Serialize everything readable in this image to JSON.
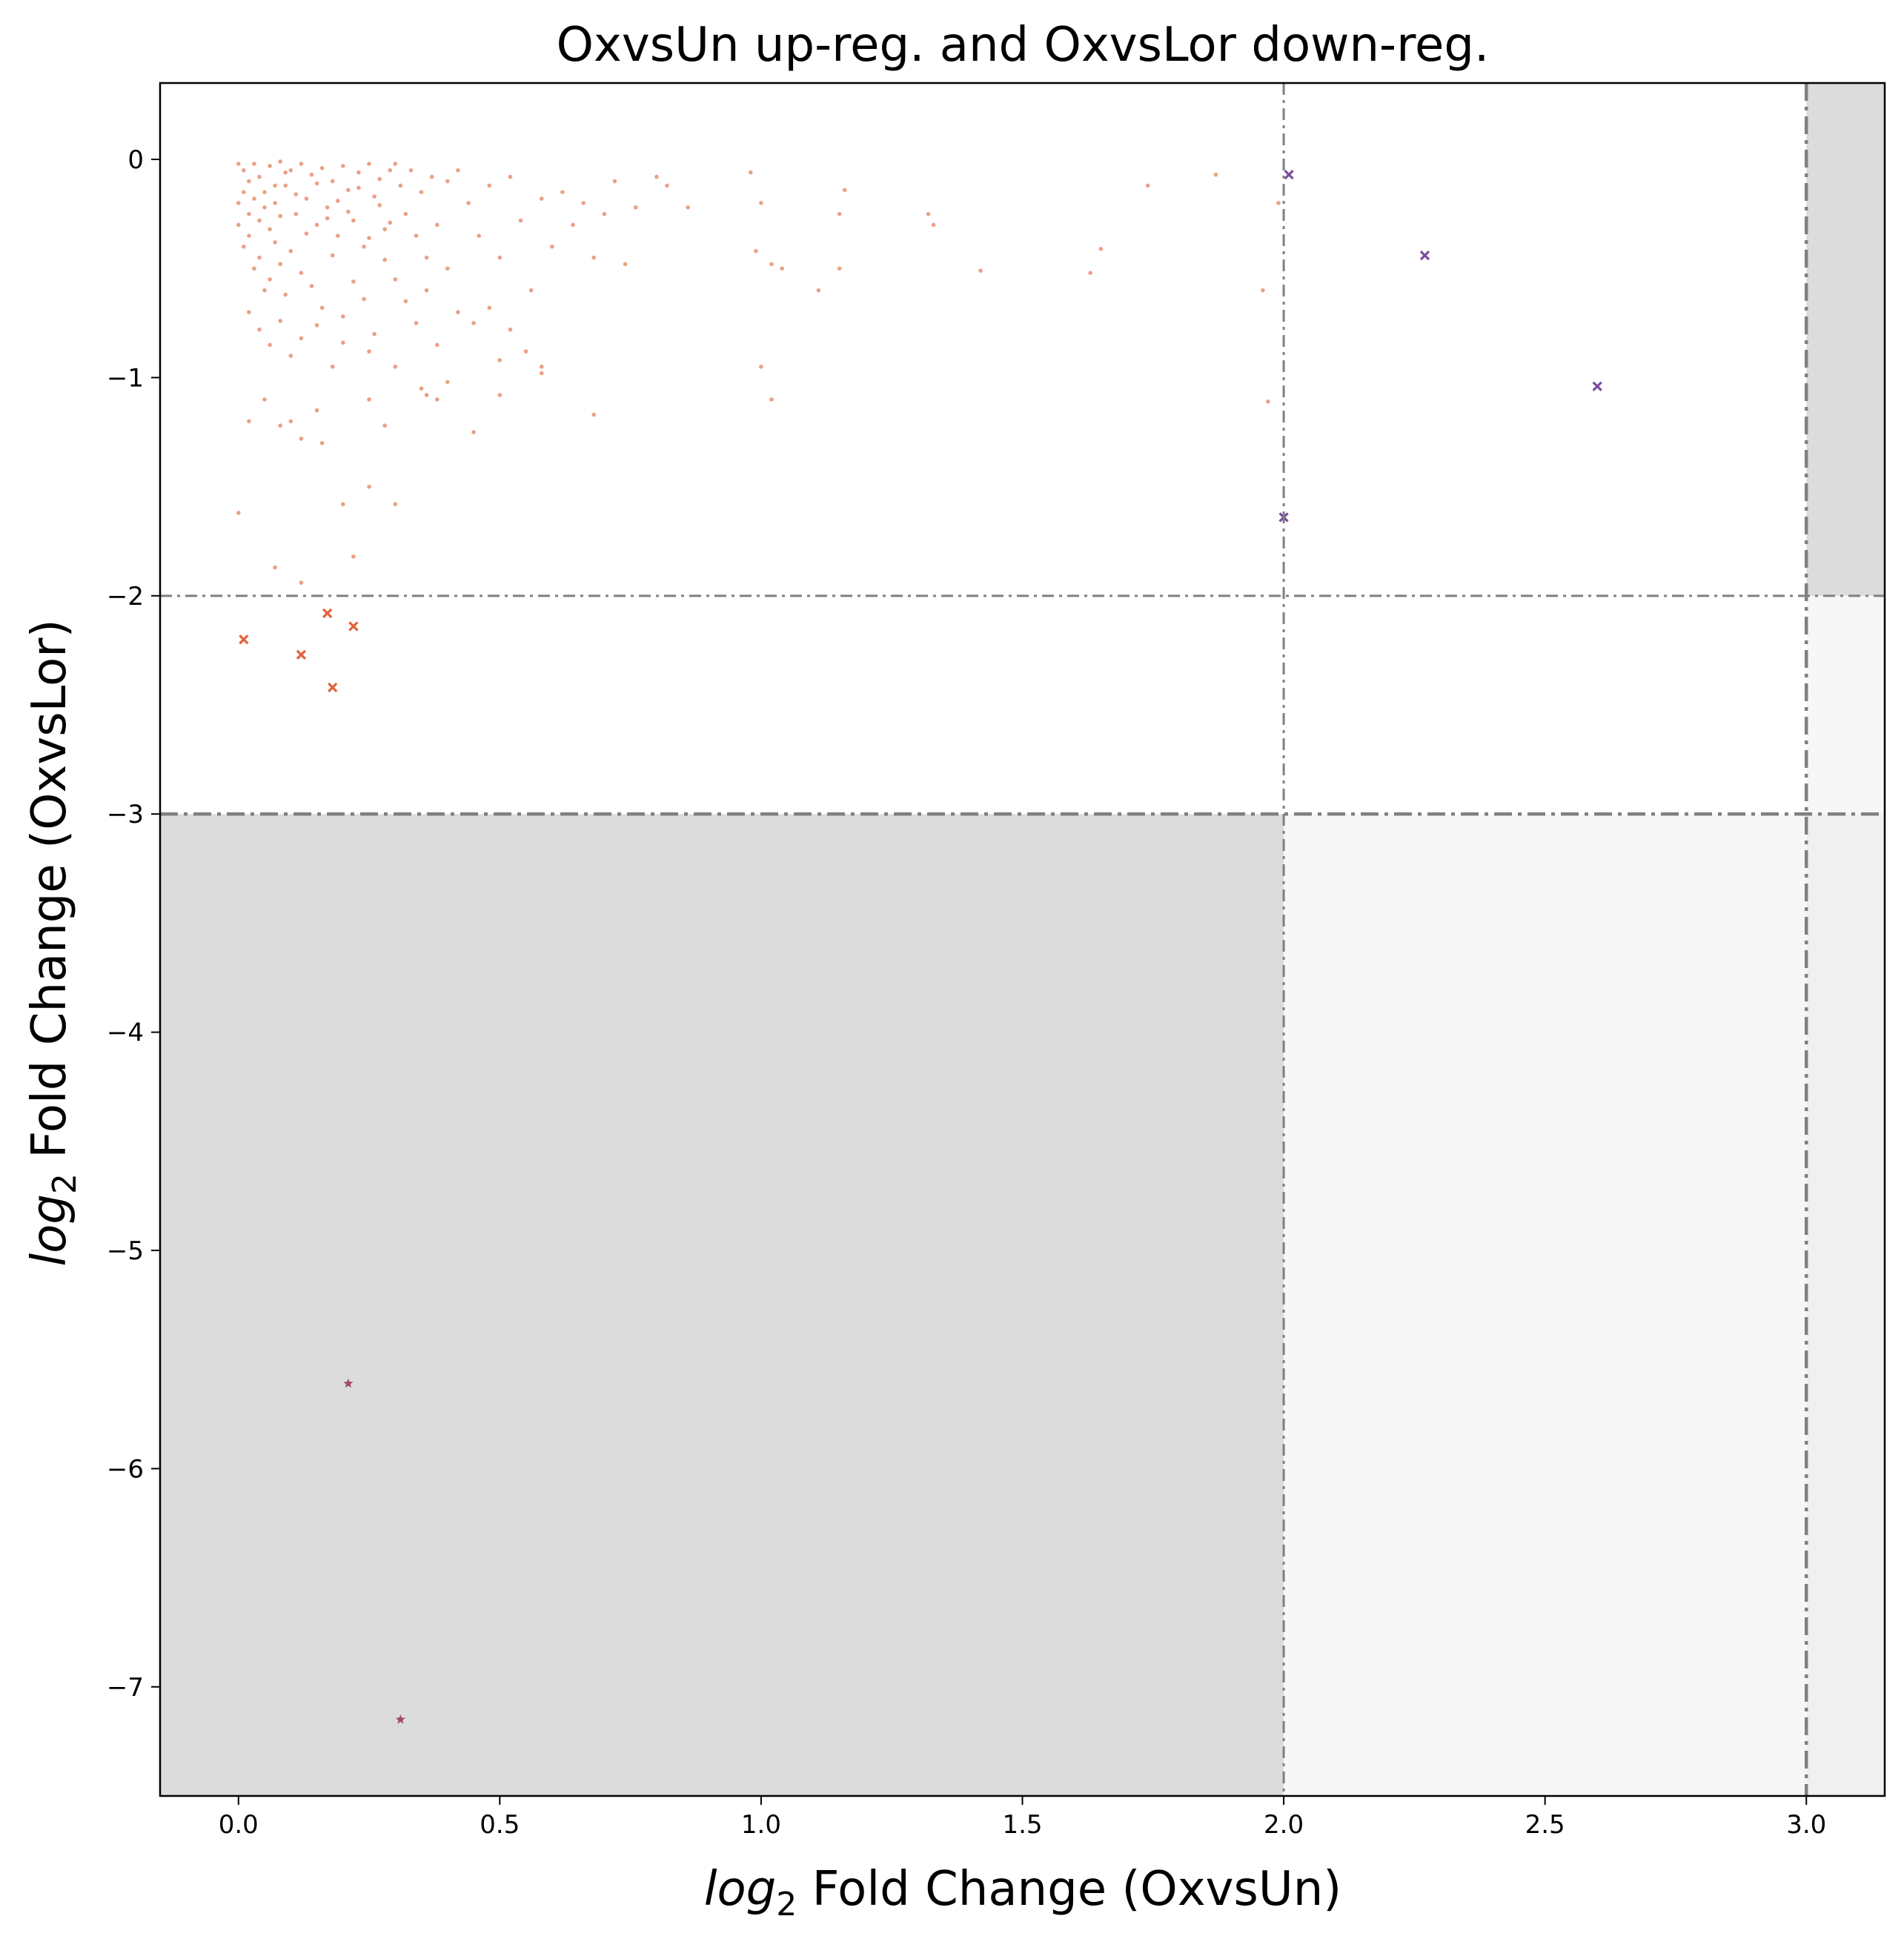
{
  "chart_data": {
    "type": "scatter",
    "title": "OxvsUn up-reg. and OxvsLor down-reg.",
    "xlabel_math": "log",
    "xlabel_sub": "2",
    "xlabel_text": " Fold Change (OxvsUn)",
    "ylabel_math": "log",
    "ylabel_sub": "2",
    "ylabel_text": " Fold Change (OxvsLor)",
    "xlim": [
      -0.15,
      3.15
    ],
    "ylim": [
      -7.5,
      0.35
    ],
    "x_ticks": [
      0.0,
      0.5,
      1.0,
      1.5,
      2.0,
      2.5,
      3.0
    ],
    "x_tick_labels": [
      "0.0",
      "0.5",
      "1.0",
      "1.5",
      "2.0",
      "2.5",
      "3.0"
    ],
    "y_ticks": [
      0,
      -1,
      -2,
      -3,
      -4,
      -5,
      -6,
      -7
    ],
    "y_tick_labels": [
      "0",
      "−1",
      "−2",
      "−3",
      "−4",
      "−5",
      "−6",
      "−7"
    ],
    "grid": false,
    "legend": "none",
    "threshold_lines": {
      "x": [
        2.0,
        3.0
      ],
      "y": [
        -2.0,
        -3.0
      ]
    },
    "shaded_regions": [
      {
        "x": [
          -0.15,
          2.0
        ],
        "y": [
          -7.5,
          -3.0
        ],
        "color": "#dcdcdc"
      },
      {
        "x": [
          2.0,
          3.0
        ],
        "y": [
          -7.5,
          -3.0
        ],
        "color": "#f7f7f7"
      },
      {
        "x": [
          3.0,
          3.15
        ],
        "y": [
          -7.5,
          -3.0
        ],
        "color": "#f0f0f0"
      },
      {
        "x": [
          3.0,
          3.15
        ],
        "y": [
          -3.0,
          -2.0
        ],
        "color": "#f7f7f7"
      },
      {
        "x": [
          3.0,
          3.15
        ],
        "y": [
          -2.0,
          0.35
        ],
        "color": "#dcdcdc"
      }
    ],
    "colors": {
      "background_points": "#e07a50",
      "highlight_purple": "#7a4e9c",
      "highlight_orange": "#e0623a",
      "star_points": "#a04a6c",
      "threshold_line": "#808080"
    },
    "series": [
      {
        "marker": "dot",
        "color": "#e07a50",
        "points": [
          [
            0.0,
            -0.02
          ],
          [
            0.01,
            -0.05
          ],
          [
            0.02,
            -0.1
          ],
          [
            0.03,
            -0.02
          ],
          [
            0.04,
            -0.08
          ],
          [
            0.05,
            -0.15
          ],
          [
            0.06,
            -0.03
          ],
          [
            0.07,
            -0.2
          ],
          [
            0.08,
            -0.01
          ],
          [
            0.09,
            -0.12
          ],
          [
            0.1,
            -0.05
          ],
          [
            0.11,
            -0.25
          ],
          [
            0.12,
            -0.02
          ],
          [
            0.13,
            -0.18
          ],
          [
            0.14,
            -0.07
          ],
          [
            0.15,
            -0.3
          ],
          [
            0.16,
            -0.04
          ],
          [
            0.17,
            -0.22
          ],
          [
            0.18,
            -0.1
          ],
          [
            0.19,
            -0.35
          ],
          [
            0.2,
            -0.03
          ],
          [
            0.21,
            -0.14
          ],
          [
            0.22,
            -0.28
          ],
          [
            0.23,
            -0.06
          ],
          [
            0.24,
            -0.4
          ],
          [
            0.25,
            -0.02
          ],
          [
            0.26,
            -0.17
          ],
          [
            0.27,
            -0.09
          ],
          [
            0.28,
            -0.32
          ],
          [
            0.29,
            -0.05
          ],
          [
            0.0,
            -0.3
          ],
          [
            0.01,
            -0.4
          ],
          [
            0.02,
            -0.35
          ],
          [
            0.03,
            -0.5
          ],
          [
            0.04,
            -0.45
          ],
          [
            0.05,
            -0.6
          ],
          [
            0.06,
            -0.55
          ],
          [
            0.07,
            -0.38
          ],
          [
            0.08,
            -0.48
          ],
          [
            0.09,
            -0.62
          ],
          [
            0.1,
            -0.42
          ],
          [
            0.12,
            -0.52
          ],
          [
            0.14,
            -0.58
          ],
          [
            0.16,
            -0.68
          ],
          [
            0.18,
            -0.44
          ],
          [
            0.2,
            -0.72
          ],
          [
            0.22,
            -0.56
          ],
          [
            0.24,
            -0.64
          ],
          [
            0.26,
            -0.8
          ],
          [
            0.28,
            -0.46
          ],
          [
            0.02,
            -0.7
          ],
          [
            0.04,
            -0.78
          ],
          [
            0.06,
            -0.85
          ],
          [
            0.08,
            -0.74
          ],
          [
            0.1,
            -0.9
          ],
          [
            0.12,
            -0.82
          ],
          [
            0.15,
            -0.76
          ],
          [
            0.18,
            -0.95
          ],
          [
            0.2,
            -0.84
          ],
          [
            0.25,
            -0.88
          ],
          [
            0.0,
            -0.2
          ],
          [
            0.01,
            -0.15
          ],
          [
            0.02,
            -0.25
          ],
          [
            0.03,
            -0.18
          ],
          [
            0.04,
            -0.28
          ],
          [
            0.05,
            -0.22
          ],
          [
            0.06,
            -0.32
          ],
          [
            0.07,
            -0.12
          ],
          [
            0.08,
            -0.26
          ],
          [
            0.09,
            -0.06
          ],
          [
            0.11,
            -0.16
          ],
          [
            0.13,
            -0.34
          ],
          [
            0.15,
            -0.11
          ],
          [
            0.17,
            -0.27
          ],
          [
            0.19,
            -0.19
          ],
          [
            0.21,
            -0.24
          ],
          [
            0.23,
            -0.13
          ],
          [
            0.25,
            -0.36
          ],
          [
            0.27,
            -0.21
          ],
          [
            0.29,
            -0.29
          ],
          [
            0.3,
            -0.02
          ],
          [
            0.31,
            -0.12
          ],
          [
            0.32,
            -0.25
          ],
          [
            0.33,
            -0.05
          ],
          [
            0.34,
            -0.35
          ],
          [
            0.35,
            -0.15
          ],
          [
            0.36,
            -0.45
          ],
          [
            0.37,
            -0.08
          ],
          [
            0.38,
            -0.3
          ],
          [
            0.4,
            -0.1
          ],
          [
            0.3,
            -0.55
          ],
          [
            0.32,
            -0.65
          ],
          [
            0.34,
            -0.75
          ],
          [
            0.36,
            -0.6
          ],
          [
            0.38,
            -0.85
          ],
          [
            0.4,
            -0.5
          ],
          [
            0.42,
            -0.7
          ],
          [
            0.3,
            -0.95
          ],
          [
            0.35,
            -1.05
          ],
          [
            0.38,
            -1.1
          ],
          [
            0.42,
            -0.05
          ],
          [
            0.44,
            -0.2
          ],
          [
            0.46,
            -0.35
          ],
          [
            0.48,
            -0.12
          ],
          [
            0.5,
            -0.45
          ],
          [
            0.52,
            -0.08
          ],
          [
            0.54,
            -0.28
          ],
          [
            0.56,
            -0.6
          ],
          [
            0.58,
            -0.18
          ],
          [
            0.6,
            -0.4
          ],
          [
            0.45,
            -0.75
          ],
          [
            0.48,
            -0.68
          ],
          [
            0.5,
            -0.92
          ],
          [
            0.52,
            -0.78
          ],
          [
            0.55,
            -0.88
          ],
          [
            0.58,
            -0.95
          ],
          [
            0.45,
            -1.25
          ],
          [
            0.5,
            -1.08
          ],
          [
            0.4,
            -1.02
          ],
          [
            0.36,
            -1.08
          ],
          [
            0.62,
            -0.15
          ],
          [
            0.64,
            -0.3
          ],
          [
            0.66,
            -0.2
          ],
          [
            0.68,
            -0.45
          ],
          [
            0.7,
            -0.25
          ],
          [
            0.72,
            -0.1
          ],
          [
            0.74,
            -0.48
          ],
          [
            0.76,
            -0.22
          ],
          [
            0.68,
            -1.17
          ],
          [
            0.58,
            -0.98
          ],
          [
            0.8,
            -0.08
          ],
          [
            0.82,
            -0.12
          ],
          [
            0.86,
            -0.22
          ],
          [
            0.98,
            -0.06
          ],
          [
            1.0,
            -0.2
          ],
          [
            0.99,
            -0.42
          ],
          [
            1.02,
            -0.48
          ],
          [
            1.04,
            -0.5
          ],
          [
            1.11,
            -0.6
          ],
          [
            1.15,
            -0.5
          ],
          [
            1.16,
            -0.14
          ],
          [
            1.15,
            -0.25
          ],
          [
            1.32,
            -0.25
          ],
          [
            1.33,
            -0.3
          ],
          [
            1.42,
            -0.51
          ],
          [
            1.63,
            -0.52
          ],
          [
            1.65,
            -0.41
          ],
          [
            1.74,
            -0.12
          ],
          [
            1.87,
            -0.07
          ],
          [
            1.96,
            -0.6
          ],
          [
            1.97,
            -1.11
          ],
          [
            1.99,
            -0.2
          ],
          [
            1.0,
            -0.95
          ],
          [
            1.02,
            -1.1
          ],
          [
            0.0,
            -1.62
          ],
          [
            0.02,
            -1.2
          ],
          [
            0.07,
            -1.87
          ],
          [
            0.12,
            -1.94
          ],
          [
            0.12,
            -1.28
          ],
          [
            0.2,
            -1.58
          ],
          [
            0.22,
            -1.82
          ],
          [
            0.25,
            -1.5
          ],
          [
            0.3,
            -1.58
          ],
          [
            0.1,
            -1.2
          ],
          [
            0.15,
            -1.15
          ],
          [
            0.05,
            -1.1
          ],
          [
            0.08,
            -1.22
          ],
          [
            0.25,
            -1.1
          ],
          [
            0.28,
            -1.22
          ],
          [
            0.16,
            -1.3
          ]
        ]
      },
      {
        "marker": "x",
        "color": "#e0623a",
        "points": [
          [
            0.01,
            -2.2
          ],
          [
            0.12,
            -2.27
          ],
          [
            0.17,
            -2.08
          ],
          [
            0.18,
            -2.42
          ],
          [
            0.22,
            -2.14
          ]
        ]
      },
      {
        "marker": "x",
        "color": "#7a4e9c",
        "points": [
          [
            2.01,
            -0.07
          ],
          [
            2.27,
            -0.44
          ],
          [
            2.6,
            -1.04
          ],
          [
            2.0,
            -1.64
          ]
        ]
      },
      {
        "marker": "star",
        "color": "#a04a6c",
        "points": [
          [
            0.21,
            -5.61
          ],
          [
            0.31,
            -7.15
          ]
        ]
      }
    ]
  }
}
